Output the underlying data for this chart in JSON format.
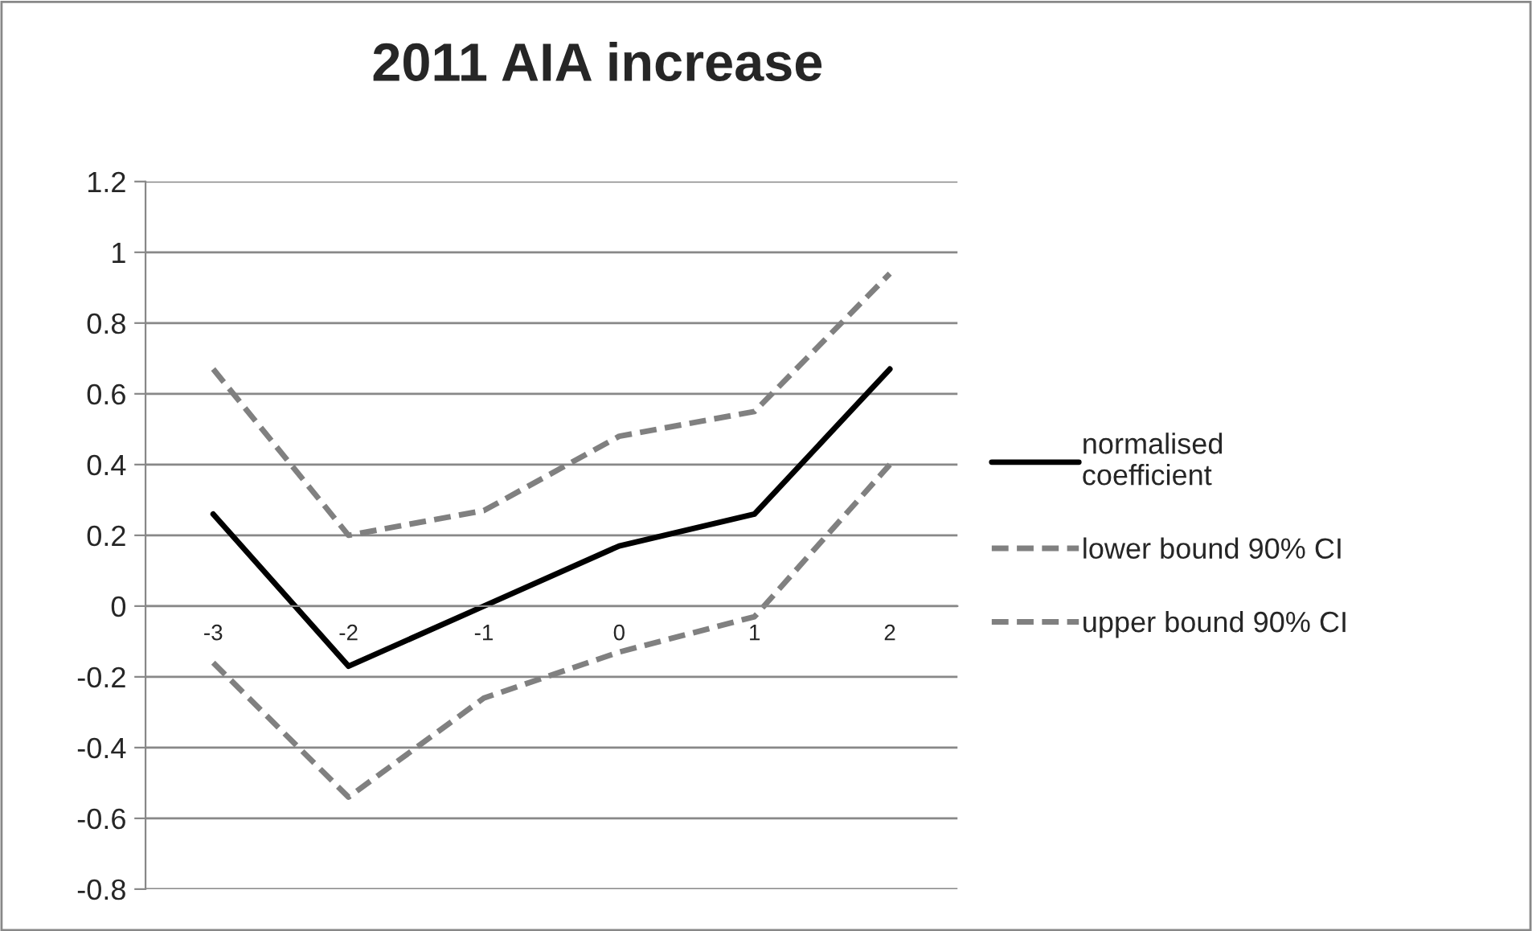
{
  "chart_data": {
    "type": "line",
    "title": "2011 AIA increase",
    "categories": [
      "-3",
      "-2",
      "-1",
      "0",
      "1",
      "2"
    ],
    "series": [
      {
        "name": "normalised\ncoefficient",
        "color": "#000000",
        "line_style": "solid",
        "values": [
          0.26,
          -0.17,
          0.0,
          0.17,
          0.26,
          0.67
        ]
      },
      {
        "name": "lower bound 90% CI",
        "color": "#808080",
        "line_style": "dashed",
        "values": [
          0.67,
          0.2,
          0.27,
          0.48,
          0.55,
          0.94
        ]
      },
      {
        "name": "upper bound 90% CI",
        "color": "#808080",
        "line_style": "dashed",
        "values": [
          -0.16,
          -0.54,
          -0.26,
          -0.13,
          -0.03,
          0.4
        ]
      }
    ],
    "ylim": [
      -0.8,
      1.2
    ],
    "yticks": [
      -0.8,
      -0.6,
      -0.4,
      -0.2,
      0,
      0.2,
      0.4,
      0.6,
      0.8,
      1,
      1.2
    ],
    "grid": "y",
    "legend": "right",
    "marker": "none"
  }
}
